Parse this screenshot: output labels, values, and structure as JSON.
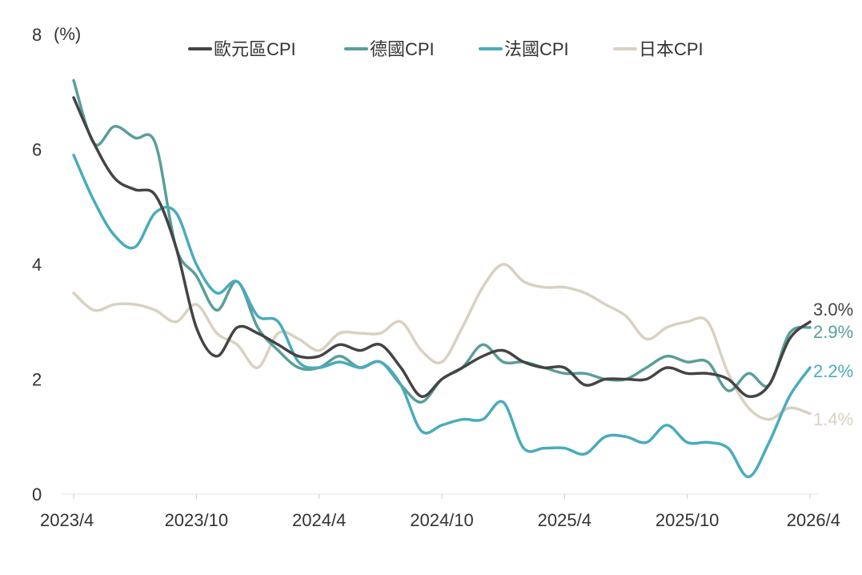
{
  "chart_data": {
    "type": "line",
    "y_unit": "(%)",
    "ylim": [
      0,
      8
    ],
    "y_ticks": [
      0,
      2,
      4,
      6,
      8
    ],
    "x_ticks": [
      "2023/4",
      "2023/10",
      "2024/4",
      "2024/10",
      "2025/4",
      "2025/10",
      "2026/4"
    ],
    "x": [
      "2023/4",
      "2023/5",
      "2023/6",
      "2023/7",
      "2023/8",
      "2023/9",
      "2023/10",
      "2023/11",
      "2023/12",
      "2024/1",
      "2024/2",
      "2024/3",
      "2024/4",
      "2024/5",
      "2024/6",
      "2024/7",
      "2024/8",
      "2024/9",
      "2024/10",
      "2024/11",
      "2024/12",
      "2025/1",
      "2025/2",
      "2025/3",
      "2025/4",
      "2025/5",
      "2025/6",
      "2025/7",
      "2025/8",
      "2025/9",
      "2025/10",
      "2025/11",
      "2025/12",
      "2026/1",
      "2026/2",
      "2026/3",
      "2026/4"
    ],
    "legend_position": "top",
    "grid": false,
    "series": [
      {
        "name": "歐元區CPI",
        "color": "#444444",
        "values": [
          6.9,
          6.1,
          5.5,
          5.3,
          5.2,
          4.3,
          2.9,
          2.4,
          2.9,
          2.8,
          2.6,
          2.4,
          2.4,
          2.6,
          2.5,
          2.6,
          2.2,
          1.7,
          2.0,
          2.2,
          2.4,
          2.5,
          2.3,
          2.2,
          2.2,
          1.9,
          2.0,
          2.0,
          2.0,
          2.2,
          2.1,
          2.1,
          2.0,
          1.7,
          1.9,
          2.7,
          3.0
        ],
        "end_label": "3.0%"
      },
      {
        "name": "德國CPI",
        "color": "#5a9e99",
        "values": [
          7.2,
          6.1,
          6.4,
          6.2,
          6.1,
          4.3,
          3.8,
          3.2,
          3.7,
          2.9,
          2.5,
          2.2,
          2.2,
          2.4,
          2.2,
          2.3,
          1.9,
          1.6,
          2.0,
          2.2,
          2.6,
          2.3,
          2.3,
          2.2,
          2.1,
          2.1,
          2.0,
          2.0,
          2.2,
          2.4,
          2.3,
          2.3,
          1.8,
          2.1,
          1.9,
          2.8,
          2.9
        ],
        "end_label": "2.9%"
      },
      {
        "name": "法國CPI",
        "color": "#4aabbd",
        "values": [
          5.9,
          5.1,
          4.5,
          4.3,
          4.9,
          4.9,
          4.0,
          3.5,
          3.7,
          3.1,
          3.0,
          2.3,
          2.2,
          2.3,
          2.2,
          2.3,
          1.9,
          1.1,
          1.2,
          1.3,
          1.3,
          1.6,
          0.8,
          0.8,
          0.8,
          0.7,
          1.0,
          1.0,
          0.9,
          1.2,
          0.9,
          0.9,
          0.8,
          0.3,
          0.9,
          1.7,
          2.2
        ],
        "end_label": "2.2%"
      },
      {
        "name": "日本CPI",
        "color": "#d9d1c1",
        "values": [
          3.5,
          3.2,
          3.3,
          3.3,
          3.2,
          3.0,
          3.3,
          2.8,
          2.6,
          2.2,
          2.8,
          2.7,
          2.5,
          2.8,
          2.8,
          2.8,
          3.0,
          2.5,
          2.3,
          2.9,
          3.6,
          4.0,
          3.7,
          3.6,
          3.6,
          3.5,
          3.3,
          3.1,
          2.7,
          2.9,
          3.0,
          3.0,
          2.1,
          1.5,
          1.3,
          1.5,
          1.4
        ],
        "end_label": "1.4%"
      }
    ]
  }
}
